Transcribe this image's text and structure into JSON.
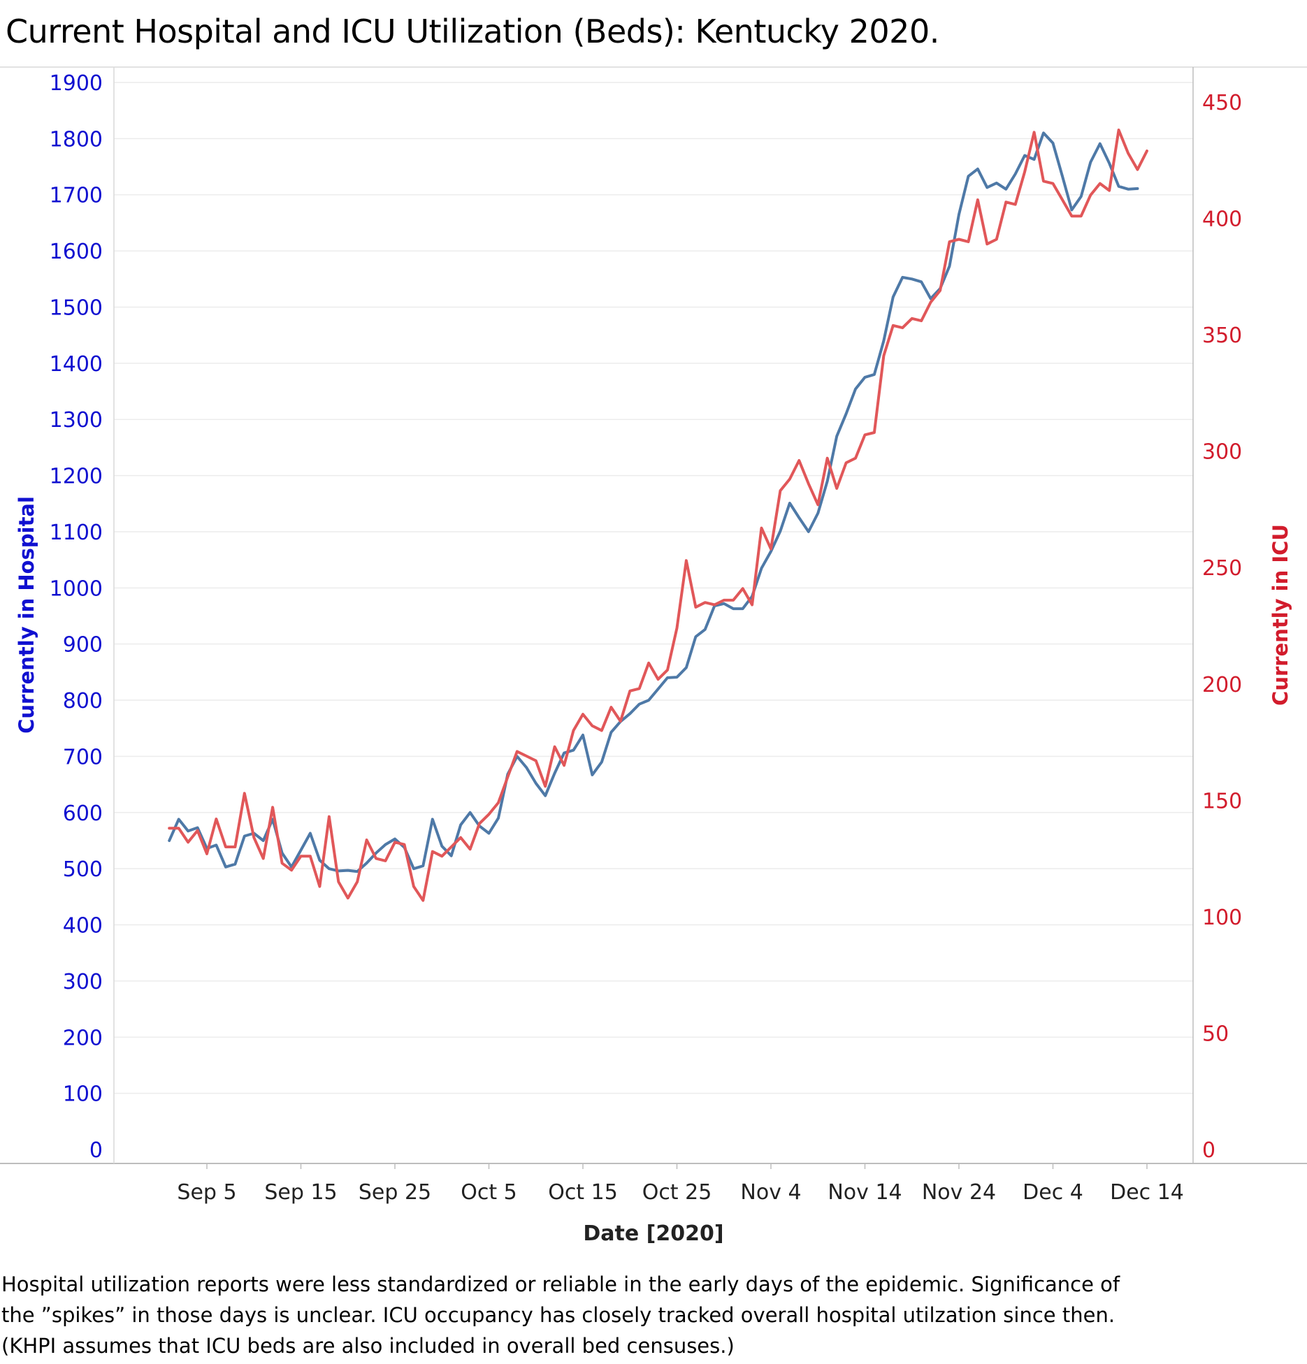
{
  "title": "Current Hospital and ICU Utilization (Beds):  Kentucky 2020.",
  "note": [
    "Hospital utilization reports were less standardized or reliable in the early days of the epidemic.  Significance of",
    "the ”spikes” in those days is unclear. ICU occupancy has closely tracked overall hospital utilzation since then.",
    "(KHPI assumes that ICU beds are also included in overall bed censuses.)"
  ],
  "chart_data": {
    "type": "line",
    "title": "Current Hospital and ICU Utilization (Beds):  Kentucky 2020.",
    "xlabel": "Date [2020]",
    "ylabel_left": "Currently in Hospital",
    "ylabel_right": "Currently in ICU",
    "x_ticks": [
      "Sep 5",
      "Sep 15",
      "Sep 25",
      "Oct 5",
      "Oct 15",
      "Oct 25",
      "Nov 4",
      "Nov 14",
      "Nov 24",
      "Dec 4",
      "Dec 14"
    ],
    "x_start": "Sep 1",
    "ylim_left": [
      0,
      1900
    ],
    "ylim_right": [
      0,
      450
    ],
    "yticks_left": [
      0,
      100,
      200,
      300,
      400,
      500,
      600,
      700,
      800,
      900,
      1000,
      1100,
      1200,
      1300,
      1400,
      1500,
      1600,
      1700,
      1800,
      1900
    ],
    "yticks_right": [
      0,
      50,
      100,
      150,
      200,
      250,
      300,
      350,
      400,
      450
    ],
    "grid": "horizontal",
    "colors": {
      "hospital": "#4e79a7",
      "icu": "#e15759",
      "left_axis": "#1010d0",
      "right_axis": "#d21c2c"
    },
    "series": [
      {
        "name": "Currently in Hospital",
        "axis": "left",
        "start": "Sep 1",
        "values": [
          550,
          588,
          567,
          573,
          536,
          542,
          503,
          508,
          558,
          563,
          550,
          588,
          528,
          503,
          533,
          563,
          515,
          500,
          496,
          497,
          495,
          510,
          528,
          543,
          553,
          538,
          500,
          505,
          588,
          540,
          523,
          578,
          600,
          576,
          563,
          590,
          668,
          700,
          680,
          652,
          630,
          670,
          706,
          711,
          738,
          667,
          690,
          743,
          762,
          776,
          793,
          800,
          820,
          840,
          841,
          858,
          913,
          926,
          968,
          972,
          963,
          963,
          985,
          1035,
          1065,
          1101,
          1151,
          1125,
          1100,
          1133,
          1190,
          1270,
          1310,
          1354,
          1375,
          1380,
          1440,
          1518,
          1553,
          1550,
          1545,
          1515,
          1533,
          1573,
          1665,
          1733,
          1746,
          1713,
          1721,
          1710,
          1737,
          1770,
          1763,
          1810,
          1792,
          1733,
          1673,
          1697,
          1758,
          1791,
          1756,
          1715,
          1710,
          1711
        ]
      },
      {
        "name": "Currently in ICU",
        "axis": "right",
        "start": "Sep 1",
        "values": [
          138,
          138,
          132,
          137,
          127,
          142,
          130,
          130,
          153,
          134,
          125,
          147,
          123,
          120,
          126,
          126,
          113,
          143,
          115,
          108,
          115,
          133,
          125,
          124,
          132,
          131,
          113,
          107,
          128,
          126,
          130,
          134,
          129,
          140,
          144,
          149,
          160,
          171,
          169,
          167,
          156,
          173,
          165,
          180,
          187,
          182,
          180,
          190,
          184,
          197,
          198,
          209,
          202,
          206,
          224,
          253,
          233,
          235,
          234,
          236,
          236,
          241,
          234,
          267,
          258,
          283,
          288,
          296,
          286,
          277,
          297,
          284,
          295,
          297,
          307,
          308,
          341,
          354,
          353,
          357,
          356,
          364,
          369,
          390,
          391,
          390,
          408,
          389,
          391,
          407,
          406,
          420,
          437,
          416,
          415,
          408,
          401,
          401,
          410,
          415,
          412,
          438,
          428,
          421,
          429
        ]
      }
    ]
  }
}
